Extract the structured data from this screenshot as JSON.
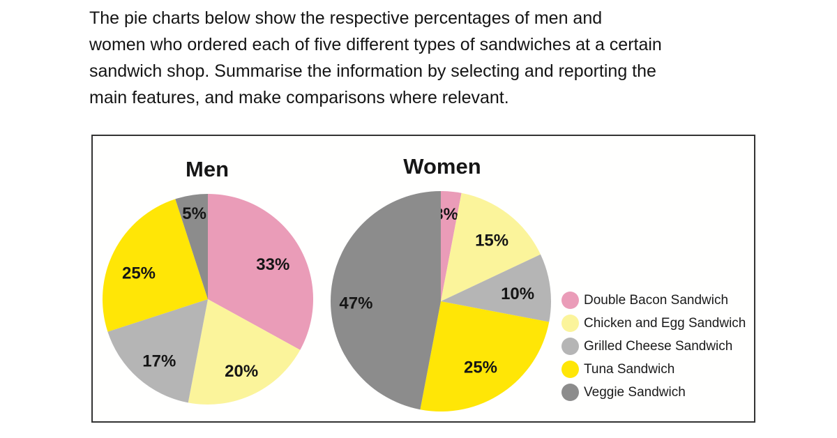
{
  "instructions": {
    "lines": [
      "The pie charts below show the respective percentages of men and",
      "women who ordered each of five different types of sandwiches at a certain",
      "sandwich shop. Summarise the information by selecting and reporting the",
      "main features, and make comparisons where relevant."
    ]
  },
  "chart_data": [
    {
      "type": "pie",
      "title": "Men",
      "start_angle_deg": 0,
      "direction": "clockwise",
      "unit": "%",
      "slices": [
        {
          "category": "Double Bacon Sandwich",
          "value": 33,
          "label": "33%",
          "color": "#EA9CB8",
          "label_angle_deg": 62,
          "label_r": 0.7
        },
        {
          "category": "Chicken and Egg Sandwich",
          "value": 20,
          "label": "20%",
          "color": "#FBF49B",
          "label_angle_deg": 155,
          "label_r": 0.755
        },
        {
          "category": "Grilled Cheese Sandwich",
          "value": 17,
          "label": "17%",
          "color": "#B5B5B5",
          "label_angle_deg": 218,
          "label_r": 0.75
        },
        {
          "category": "Tuna Sandwich",
          "value": 25,
          "label": "25%",
          "color": "#FFE606",
          "label_angle_deg": 290.5,
          "label_r": 0.7
        },
        {
          "category": "Veggie Sandwich",
          "value": 5,
          "label": "5%",
          "color": "#8C8C8C",
          "label_angle_deg": 351,
          "label_r": 0.82
        }
      ]
    },
    {
      "type": "pie",
      "title": "Women",
      "start_angle_deg": 0,
      "direction": "clockwise",
      "unit": "%",
      "slices": [
        {
          "category": "Double Bacon Sandwich",
          "value": 3,
          "label": "3%",
          "color": "#EA9CB8",
          "label_angle_deg": 3.5,
          "label_r": 0.79
        },
        {
          "category": "Chicken and Egg Sandwich",
          "value": 15,
          "label": "15%",
          "color": "#FBF49B",
          "label_angle_deg": 40,
          "label_r": 0.72
        },
        {
          "category": "Grilled Cheese Sandwich",
          "value": 10,
          "label": "10%",
          "color": "#B5B5B5",
          "label_angle_deg": 84.5,
          "label_r": 0.7
        },
        {
          "category": "Tuna Sandwich",
          "value": 25,
          "label": "25%",
          "color": "#FFE606",
          "label_angle_deg": 149,
          "label_r": 0.7
        },
        {
          "category": "Veggie Sandwich",
          "value": 47,
          "label": "47%",
          "color": "#8C8C8C",
          "label_angle_deg": 268.5,
          "label_r": 0.77
        }
      ]
    }
  ],
  "legend": {
    "position": "right",
    "items": [
      {
        "label": "Double Bacon Sandwich",
        "color": "#EA9CB8"
      },
      {
        "label": "Chicken and Egg Sandwich",
        "color": "#FBF49B"
      },
      {
        "label": "Grilled Cheese Sandwich",
        "color": "#B5B5B5"
      },
      {
        "label": "Tuna Sandwich",
        "color": "#FFE606"
      },
      {
        "label": "Veggie Sandwich",
        "color": "#8C8C8C"
      }
    ]
  }
}
